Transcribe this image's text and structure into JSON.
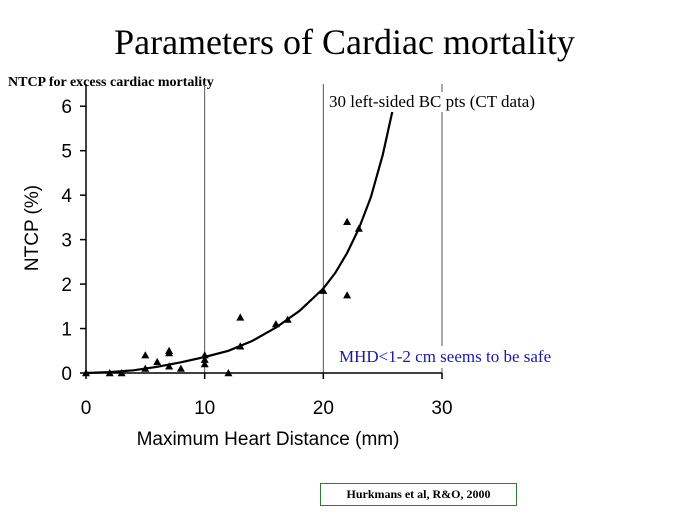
{
  "slide": {
    "title": "Parameters of Cardiac mortality",
    "subtitle": "NTCP for excess cardiac mortality",
    "dataset_label": "30 left-sided BC pts (CT data)",
    "annotation": "MHD<1-2 cm seems to be safe",
    "citation": "Hurkmans et al, R&O, 2000",
    "annotation_color": "#1a1aa8",
    "citation_border_color": "#2e7d2e"
  },
  "chart_data": {
    "type": "scatter",
    "title": "",
    "xlabel": "Maximum Heart Distance (mm)",
    "ylabel": "NTCP (%)",
    "xlim": [
      0,
      30
    ],
    "ylim": [
      0,
      6.5
    ],
    "x_ticks": [
      0,
      10,
      20,
      30
    ],
    "y_ticks": [
      0,
      1,
      2,
      3,
      4,
      5,
      6
    ],
    "grid": "vertical gridlines at x ticks",
    "points": [
      {
        "x": 0,
        "y": 0.0
      },
      {
        "x": 2,
        "y": 0.0
      },
      {
        "x": 3,
        "y": 0.0
      },
      {
        "x": 5,
        "y": 0.1
      },
      {
        "x": 5,
        "y": 0.4
      },
      {
        "x": 6,
        "y": 0.25
      },
      {
        "x": 7,
        "y": 0.15
      },
      {
        "x": 7,
        "y": 0.45
      },
      {
        "x": 7,
        "y": 0.5
      },
      {
        "x": 8,
        "y": 0.1
      },
      {
        "x": 10,
        "y": 0.2
      },
      {
        "x": 10,
        "y": 0.3
      },
      {
        "x": 10,
        "y": 0.4
      },
      {
        "x": 12,
        "y": 0.0
      },
      {
        "x": 13,
        "y": 0.6
      },
      {
        "x": 13,
        "y": 1.25
      },
      {
        "x": 16,
        "y": 1.1
      },
      {
        "x": 17,
        "y": 1.2
      },
      {
        "x": 20,
        "y": 1.85
      },
      {
        "x": 22,
        "y": 1.75
      },
      {
        "x": 22,
        "y": 3.4
      },
      {
        "x": 23,
        "y": 3.25
      },
      {
        "x": 26,
        "y": 6.1
      }
    ],
    "curve": [
      {
        "x": 0,
        "y": 0.0
      },
      {
        "x": 2,
        "y": 0.02
      },
      {
        "x": 4,
        "y": 0.06
      },
      {
        "x": 6,
        "y": 0.14
      },
      {
        "x": 8,
        "y": 0.24
      },
      {
        "x": 10,
        "y": 0.36
      },
      {
        "x": 12,
        "y": 0.5
      },
      {
        "x": 14,
        "y": 0.72
      },
      {
        "x": 16,
        "y": 1.02
      },
      {
        "x": 18,
        "y": 1.4
      },
      {
        "x": 20,
        "y": 1.9
      },
      {
        "x": 21,
        "y": 2.25
      },
      {
        "x": 22,
        "y": 2.7
      },
      {
        "x": 23,
        "y": 3.25
      },
      {
        "x": 24,
        "y": 3.95
      },
      {
        "x": 25,
        "y": 4.9
      },
      {
        "x": 26,
        "y": 6.1
      }
    ]
  }
}
